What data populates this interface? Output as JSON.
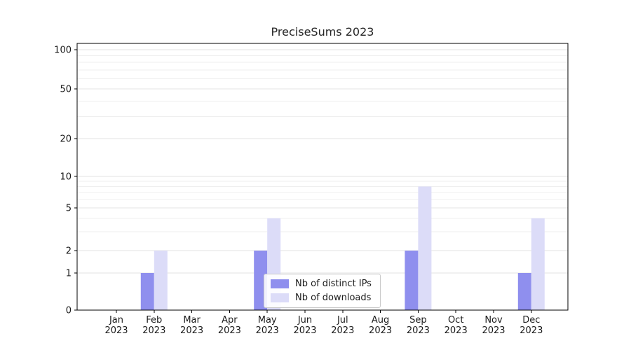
{
  "chart_data": {
    "type": "bar",
    "title": "PreciseSums 2023",
    "yscale": "symlog",
    "categories": [
      "Jan 2023",
      "Feb 2023",
      "Mar 2023",
      "Apr 2023",
      "May 2023",
      "Jun 2023",
      "Jul 2023",
      "Aug 2023",
      "Sep 2023",
      "Oct 2023",
      "Nov 2023",
      "Dec 2023"
    ],
    "series": [
      {
        "name": "Nb of distinct IPs",
        "color": "#8f8fee",
        "values": [
          0,
          1,
          0,
          0,
          2,
          0,
          0,
          0,
          2,
          0,
          0,
          1
        ]
      },
      {
        "name": "Nb of downloads",
        "color": "#dcdcf8",
        "values": [
          0,
          2,
          0,
          0,
          4,
          0,
          0,
          0,
          8,
          0,
          0,
          4
        ]
      }
    ],
    "y_ticks": [
      0,
      1,
      2,
      5,
      10,
      20,
      50,
      100
    ],
    "y_minor_ticks": [
      3,
      4,
      6,
      7,
      8,
      9,
      30,
      40,
      60,
      70,
      80,
      90
    ],
    "ylim": [
      0,
      120
    ],
    "grid": true,
    "legend_position": "lower center"
  }
}
